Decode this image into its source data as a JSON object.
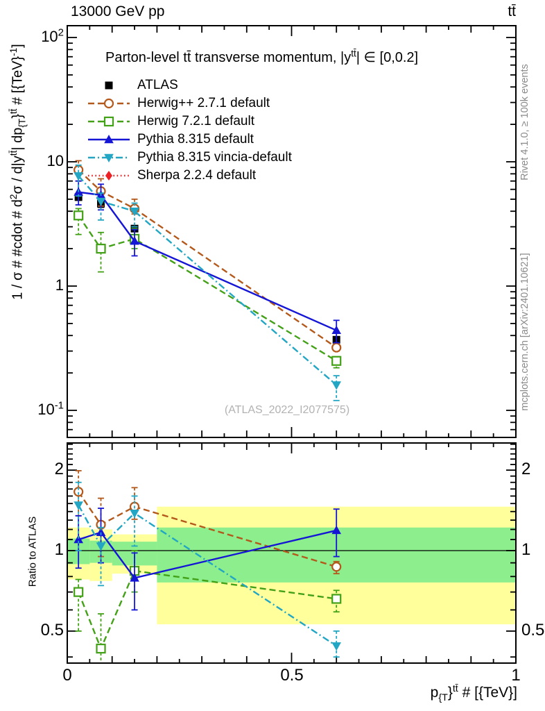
{
  "header": {
    "left_label": "13000 GeV pp",
    "right_label": "tt̄"
  },
  "side_captions": {
    "top": "Rivet 4.1.0, ≥ 100k events",
    "bottom": "mcplots.cern.ch [arXiv:2401.10621]"
  },
  "main_panel": {
    "title_segments": [
      {
        "t": "Parton-level tt̄ transverse momentum, |y"
      },
      {
        "t": "tt̄",
        "s": "sup"
      },
      {
        "t": "| ∈ [0,0.2]"
      }
    ],
    "ylabel_segments": [
      {
        "t": "1 / σ # #cdot # d"
      },
      {
        "t": "2",
        "s": "sup"
      },
      {
        "t": "σ / d|y"
      },
      {
        "t": "tt̄",
        "s": "sup"
      },
      {
        "t": "| dp"
      },
      {
        "t": "{T",
        "s": "sub"
      },
      {
        "t": "}"
      },
      {
        "t": "tt̄",
        "s": "sup"
      },
      {
        "t": " # [{TeV}"
      },
      {
        "t": "-1",
        "s": "sup"
      },
      {
        "t": "]"
      }
    ],
    "ytick_labels": [
      [
        {
          "t": "10"
        },
        {
          "t": "2",
          "s": "sup"
        }
      ],
      [
        {
          "t": "10"
        }
      ],
      [
        {
          "t": "1"
        }
      ],
      [
        {
          "t": "10"
        },
        {
          "t": "-1",
          "s": "sup"
        }
      ]
    ],
    "watermark": "(ATLAS_2022_I2077575)"
  },
  "ratio_panel": {
    "ylabel": "Ratio to ATLAS",
    "tick_labels": [
      "2",
      "1",
      "0.5"
    ]
  },
  "xaxis": {
    "label_segments": [
      {
        "t": "p"
      },
      {
        "t": "{T",
        "s": "sub"
      },
      {
        "t": "}"
      },
      {
        "t": "tt̄",
        "s": "sup"
      },
      {
        "t": " # [{TeV}]"
      }
    ],
    "tick_labels": [
      "0",
      "0.5",
      "1"
    ]
  },
  "chart_data": {
    "type": "line",
    "title": "Parton-level tt̄ transverse momentum, |y^{tt̄}| ∈ [0,0.2]",
    "xlabel": "p_{T}^{tt̄} [TeV]",
    "ylabel": "1/σ · d²σ/d|y^{tt̄}|dp_{T}^{tt̄} [TeV⁻¹]",
    "ratio_ylabel": "Ratio to ATLAS",
    "xlim": [
      0,
      1
    ],
    "ylim_main": [
      0.0605,
      124
    ],
    "ylim_ratio": [
      0.379,
      2.53
    ],
    "x_points": [
      0.025,
      0.075,
      0.15,
      0.6
    ],
    "bin_edges": [
      0,
      0.05,
      0.1,
      0.2,
      1.0
    ],
    "xticks_labeled": [
      0,
      0.5,
      1
    ],
    "yticks_main_labeled": [
      100,
      10,
      1,
      0.1
    ],
    "yticks_ratio_labeled": [
      2,
      1,
      0.5
    ],
    "series": [
      {
        "label": "ATLAS",
        "color": "#000000",
        "marker": "square",
        "filled": true,
        "line": "none",
        "in_ratio_panel": false,
        "legend_only": false,
        "values": [
          5.2,
          4.6,
          2.9,
          0.37
        ],
        "err_lo": [
          4.9,
          4.3,
          2.75,
          0.35
        ],
        "err_hi": [
          5.5,
          4.9,
          3.05,
          0.39
        ],
        "ratio": [
          1,
          1,
          1,
          1
        ]
      },
      {
        "label": "Herwig++ 2.7.1 default",
        "color": "#b4591c",
        "marker": "circle",
        "filled": false,
        "line": "dashed",
        "in_ratio_panel": true,
        "legend_only": false,
        "values": [
          8.6,
          5.8,
          4.2,
          0.32
        ],
        "err_lo": [
          7.0,
          4.4,
          3.8,
          0.3
        ],
        "err_hi": [
          10.2,
          7.3,
          5.0,
          0.34
        ],
        "ratio": [
          1.66,
          1.25,
          1.46,
          0.87
        ],
        "ratio_err_lo": [
          1.35,
          0.95,
          1.31,
          0.82
        ],
        "ratio_err_hi": [
          1.99,
          1.57,
          1.72,
          0.91
        ]
      },
      {
        "label": "Herwig 7.2.1 default",
        "color": "#43a117",
        "marker": "square",
        "filled": false,
        "line": "dashed",
        "in_ratio_panel": true,
        "legend_only": false,
        "values": [
          3.7,
          2.0,
          2.4,
          0.25
        ],
        "err_lo": [
          2.6,
          1.3,
          2.0,
          0.22
        ],
        "err_hi": [
          4.2,
          2.7,
          2.9,
          0.27
        ],
        "ratio": [
          0.7,
          0.43,
          0.84,
          0.66
        ],
        "ratio_err_lo": [
          0.5,
          0.34,
          0.7,
          0.59
        ],
        "ratio_err_hi": [
          0.78,
          0.58,
          1.0,
          0.71
        ]
      },
      {
        "label": "Pythia 8.315 default",
        "color": "#1515d6",
        "marker": "triangle-up",
        "filled": true,
        "line": "solid",
        "in_ratio_panel": true,
        "legend_only": false,
        "values": [
          5.7,
          5.4,
          2.3,
          0.44
        ],
        "err_lo": [
          4.5,
          4.1,
          1.75,
          0.35
        ],
        "err_hi": [
          7.0,
          6.6,
          2.85,
          0.53
        ],
        "ratio": [
          1.1,
          1.17,
          0.79,
          1.19
        ],
        "ratio_err_lo": [
          0.86,
          0.9,
          0.6,
          0.95
        ],
        "ratio_err_hi": [
          1.35,
          1.44,
          0.98,
          1.43
        ]
      },
      {
        "label": "Pythia 8.315 vincia-default",
        "color": "#22a6c3",
        "marker": "triangle-down",
        "filled": true,
        "line": "dashdot",
        "in_ratio_panel": true,
        "legend_only": false,
        "values": [
          7.7,
          4.8,
          4.0,
          0.16
        ],
        "err_lo": [
          5.3,
          3.4,
          3.0,
          0.12
        ],
        "err_hi": [
          9.4,
          5.6,
          4.65,
          0.19
        ],
        "ratio": [
          1.48,
          1.04,
          1.38,
          0.44
        ],
        "ratio_err_lo": [
          1.0,
          0.74,
          1.04,
          0.4
        ],
        "ratio_err_hi": [
          1.8,
          1.22,
          1.6,
          0.5
        ]
      },
      {
        "label": "Sherpa 2.2.4 default",
        "color": "#ed2024",
        "marker": "diamond",
        "filled": true,
        "line": "dotted",
        "in_ratio_panel": false,
        "legend_only": true,
        "values": []
      }
    ],
    "bands": {
      "yellow_color": "#ffff9c",
      "green_color": "#8cee8c",
      "yellow": [
        [
          0.78,
          1.22
        ],
        [
          0.77,
          1.2
        ],
        [
          0.82,
          1.15
        ],
        [
          0.53,
          1.46
        ]
      ],
      "green": [
        [
          0.89,
          1.11
        ],
        [
          0.9,
          1.09
        ],
        [
          0.88,
          1.08
        ],
        [
          0.76,
          1.22
        ]
      ]
    }
  }
}
